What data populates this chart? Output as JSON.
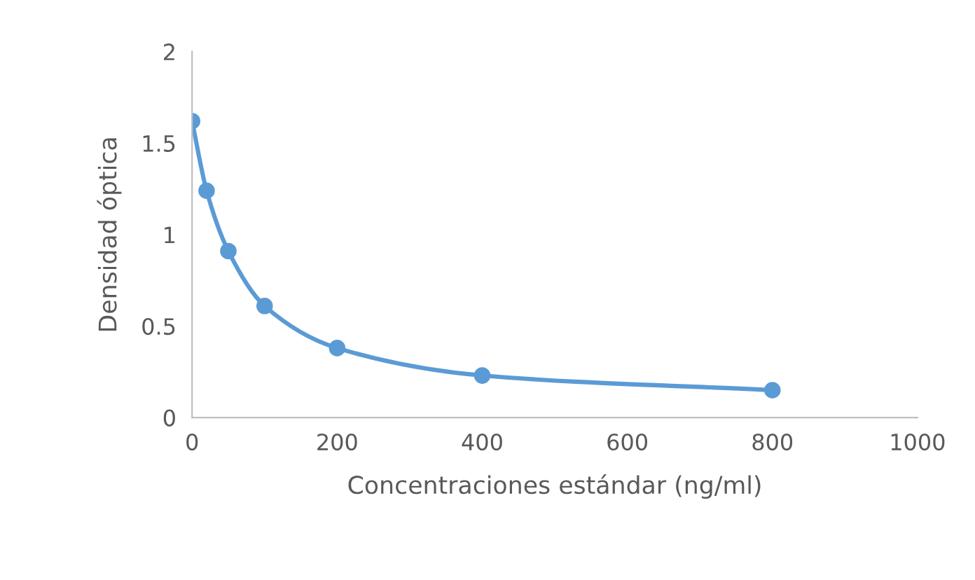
{
  "chart_data": {
    "type": "line",
    "xlabel": "Concentraciones estándar (ng/ml)",
    "ylabel": "Densidad óptica",
    "x": [
      0,
      20,
      50,
      100,
      200,
      400,
      800
    ],
    "series": [
      {
        "color": "#5b9bd5",
        "values": [
          1.62,
          1.24,
          0.91,
          0.61,
          0.38,
          0.23,
          0.15
        ]
      }
    ],
    "xlim": [
      0,
      1000
    ],
    "xticks": [
      0,
      200,
      400,
      600,
      800,
      1000
    ],
    "ylim": [
      0,
      2
    ],
    "yticks": [
      0,
      0.5,
      1,
      1.5,
      2
    ],
    "marker": "circle",
    "line_style": "solid",
    "grid": false,
    "legend": false
  }
}
